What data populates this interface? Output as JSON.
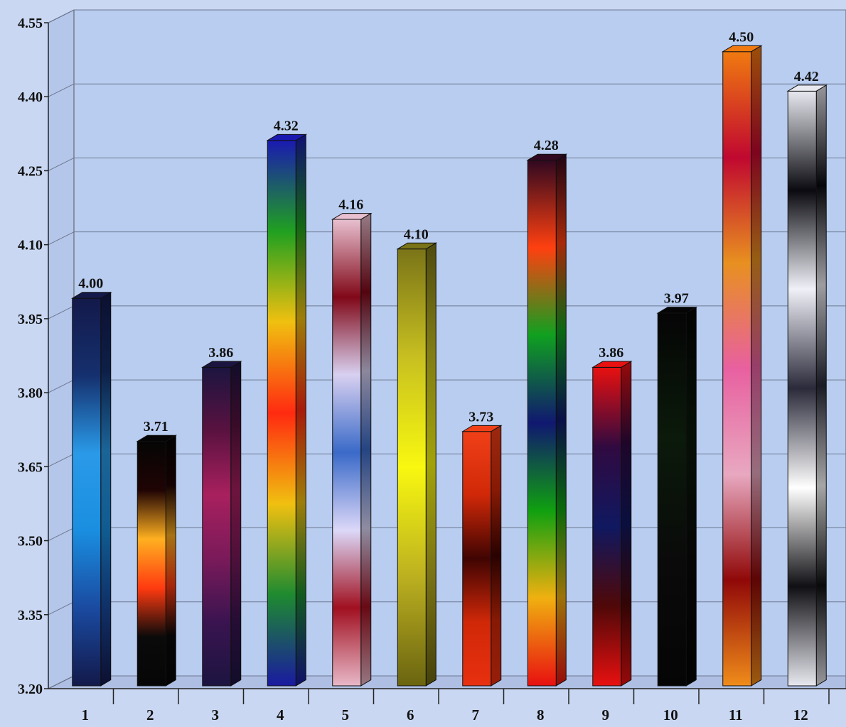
{
  "chart_data": {
    "type": "bar",
    "title": "",
    "xlabel": "",
    "ylabel": "",
    "categories": [
      "1",
      "2",
      "3",
      "4",
      "5",
      "6",
      "7",
      "8",
      "9",
      "10",
      "11",
      "12"
    ],
    "values": [
      4.0,
      3.71,
      3.86,
      4.32,
      4.16,
      4.1,
      3.73,
      4.28,
      3.86,
      3.97,
      4.5,
      4.42
    ],
    "value_labels": [
      "4.00",
      "3.71",
      "3.86",
      "4.32",
      "4.16",
      "4.10",
      "3.73",
      "4.28",
      "3.86",
      "3.97",
      "4.50",
      "4.42"
    ],
    "ylim": [
      3.2,
      4.55
    ],
    "yticks": [
      "3.20",
      "3.35",
      "3.50",
      "3.65",
      "3.80",
      "3.95",
      "4.10",
      "4.25",
      "4.40",
      "4.55"
    ],
    "grid": true,
    "three_d": true,
    "colors": {
      "background": "#c9d7f2",
      "plot_wall": "#b9cdf0",
      "floor": "#aebfe3",
      "gridline": "#6d7890",
      "bar_gradients": [
        [
          "#13194a",
          "#1a4aa0",
          "#1a8ee0",
          "#2a9ae8",
          "#15306e",
          "#13194a"
        ],
        [
          "#060606",
          "#0a0a0a",
          "#ff3a10",
          "#ffb020",
          "#200404",
          "#050505"
        ],
        [
          "#1c1440",
          "#3a1450",
          "#7a1a5a",
          "#a8205e",
          "#5a1240",
          "#1c1440"
        ],
        [
          "#1a1aa0",
          "#1e8a30",
          "#f0c010",
          "#ff2a10",
          "#f0c010",
          "#20a020",
          "#1a1ab0"
        ],
        [
          "#e8b8c8",
          "#a01020",
          "#dcd8f8",
          "#3a6ac8",
          "#d8d0f0",
          "#800818",
          "#e8c0d0"
        ],
        [
          "#6a6410",
          "#bcb020",
          "#f8f810",
          "#c8c020",
          "#7a7418"
        ],
        [
          "#e83010",
          "#d02808",
          "#400402",
          "#d02808",
          "#f04018"
        ],
        [
          "#e81010",
          "#f0b010",
          "#10a010",
          "#101870",
          "#10a020",
          "#ff4010",
          "#300820"
        ],
        [
          "#e81010",
          "#500808",
          "#101860",
          "#300a40",
          "#e81010"
        ],
        [
          "#050505",
          "#0a0a0a",
          "#0b1a0b",
          "#050505"
        ],
        [
          "#f08c1a",
          "#900808",
          "#e8a8c0",
          "#e860a0",
          "#e89020",
          "#c00830",
          "#f07a10"
        ],
        [
          "#e8e8f0",
          "#101014",
          "#ffffff",
          "#2a2a3a",
          "#f0f0f8",
          "#0a0a10",
          "#e8e8f0"
        ]
      ]
    }
  }
}
